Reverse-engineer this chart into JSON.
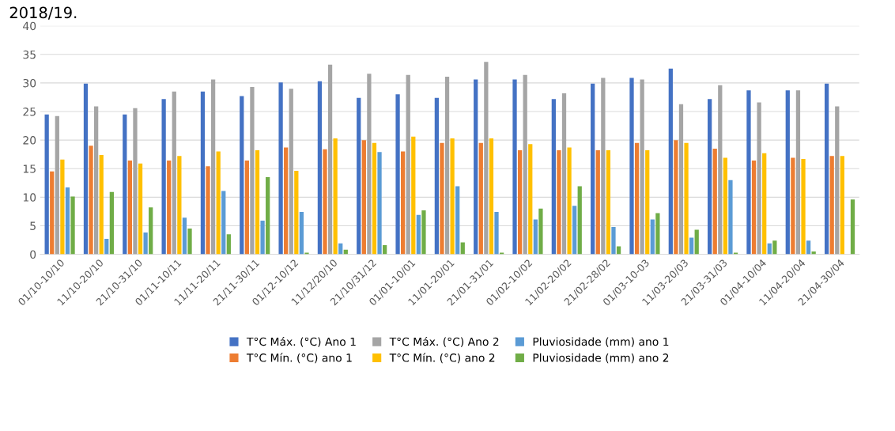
{
  "chart_data": {
    "type": "bar",
    "annotations": [
      "2018/19."
    ],
    "categories": [
      "01/10-10/10",
      "11/10-20/10",
      "21/10-31/10",
      "01/11-10/11",
      "11/11-20/11",
      "21/11-30/11",
      "01/12-10/12",
      "11/12/20/10",
      "21/10/31/12",
      "01/01-10/01",
      "11/01-20/01",
      "21/01-31/01",
      "01/02-10/02",
      "11/02-20/02",
      "21/02-28/02",
      "01/03-10-03",
      "11/03-20/03",
      "21/03-31/03",
      "01/04-10/04",
      "11/04-20/04",
      "21/04-30/04"
    ],
    "series": [
      {
        "name": "T°C Máx. (°C) Ano 1",
        "color": "#4472c4",
        "values": [
          24.5,
          29.9,
          24.5,
          27.2,
          28.5,
          27.7,
          30.1,
          30.3,
          27.4,
          28.0,
          27.4,
          30.6,
          30.6,
          27.2,
          29.9,
          30.9,
          32.5,
          27.2,
          28.7,
          28.7,
          29.9
        ]
      },
      {
        "name": "T°C Mín. (°C) ano 1",
        "color": "#ed7d31",
        "values": [
          14.5,
          19.0,
          16.4,
          16.4,
          15.4,
          16.4,
          18.7,
          18.4,
          20.0,
          18.0,
          19.5,
          19.5,
          18.2,
          18.2,
          18.2,
          19.5,
          20.0,
          18.5,
          16.4,
          16.9,
          17.2
        ]
      },
      {
        "name": "T°C Máx. (°C) Ano 2",
        "color": "#a5a5a5",
        "values": [
          24.2,
          25.9,
          25.6,
          28.5,
          30.6,
          29.3,
          29.0,
          33.2,
          31.6,
          31.4,
          31.1,
          33.7,
          31.4,
          28.2,
          30.9,
          30.6,
          26.3,
          29.6,
          26.6,
          28.7,
          25.9
        ]
      },
      {
        "name": "T°C Mín. (°C) ano 2",
        "color": "#ffc000",
        "values": [
          16.6,
          17.4,
          15.9,
          17.2,
          18.0,
          18.2,
          14.6,
          20.3,
          19.5,
          20.6,
          20.3,
          20.3,
          19.3,
          18.7,
          18.2,
          18.2,
          19.5,
          16.9,
          17.7,
          16.7,
          17.2
        ]
      },
      {
        "name": "Pluviosidade (mm) ano 1",
        "color": "#5b9bd5",
        "values": [
          11.7,
          2.7,
          3.8,
          6.4,
          11.1,
          5.9,
          7.4,
          1.9,
          17.9,
          6.9,
          11.9,
          7.4,
          6.1,
          8.5,
          4.8,
          6.1,
          2.9,
          13.0,
          1.9,
          2.4,
          null
        ]
      },
      {
        "name": "Pluviosidade (mm) ano 2",
        "color": "#70ad47",
        "values": [
          10.1,
          10.9,
          8.2,
          4.5,
          3.5,
          13.5,
          0.3,
          0.8,
          1.6,
          7.7,
          2.1,
          0.3,
          8.0,
          11.9,
          1.4,
          7.2,
          4.3,
          0.3,
          2.4,
          0.5,
          9.6
        ]
      }
    ],
    "ylim": [
      0,
      40
    ],
    "yticks": [
      0,
      5,
      10,
      15,
      20,
      25,
      30,
      35,
      40
    ],
    "grid": "y",
    "legend": "bottom"
  }
}
